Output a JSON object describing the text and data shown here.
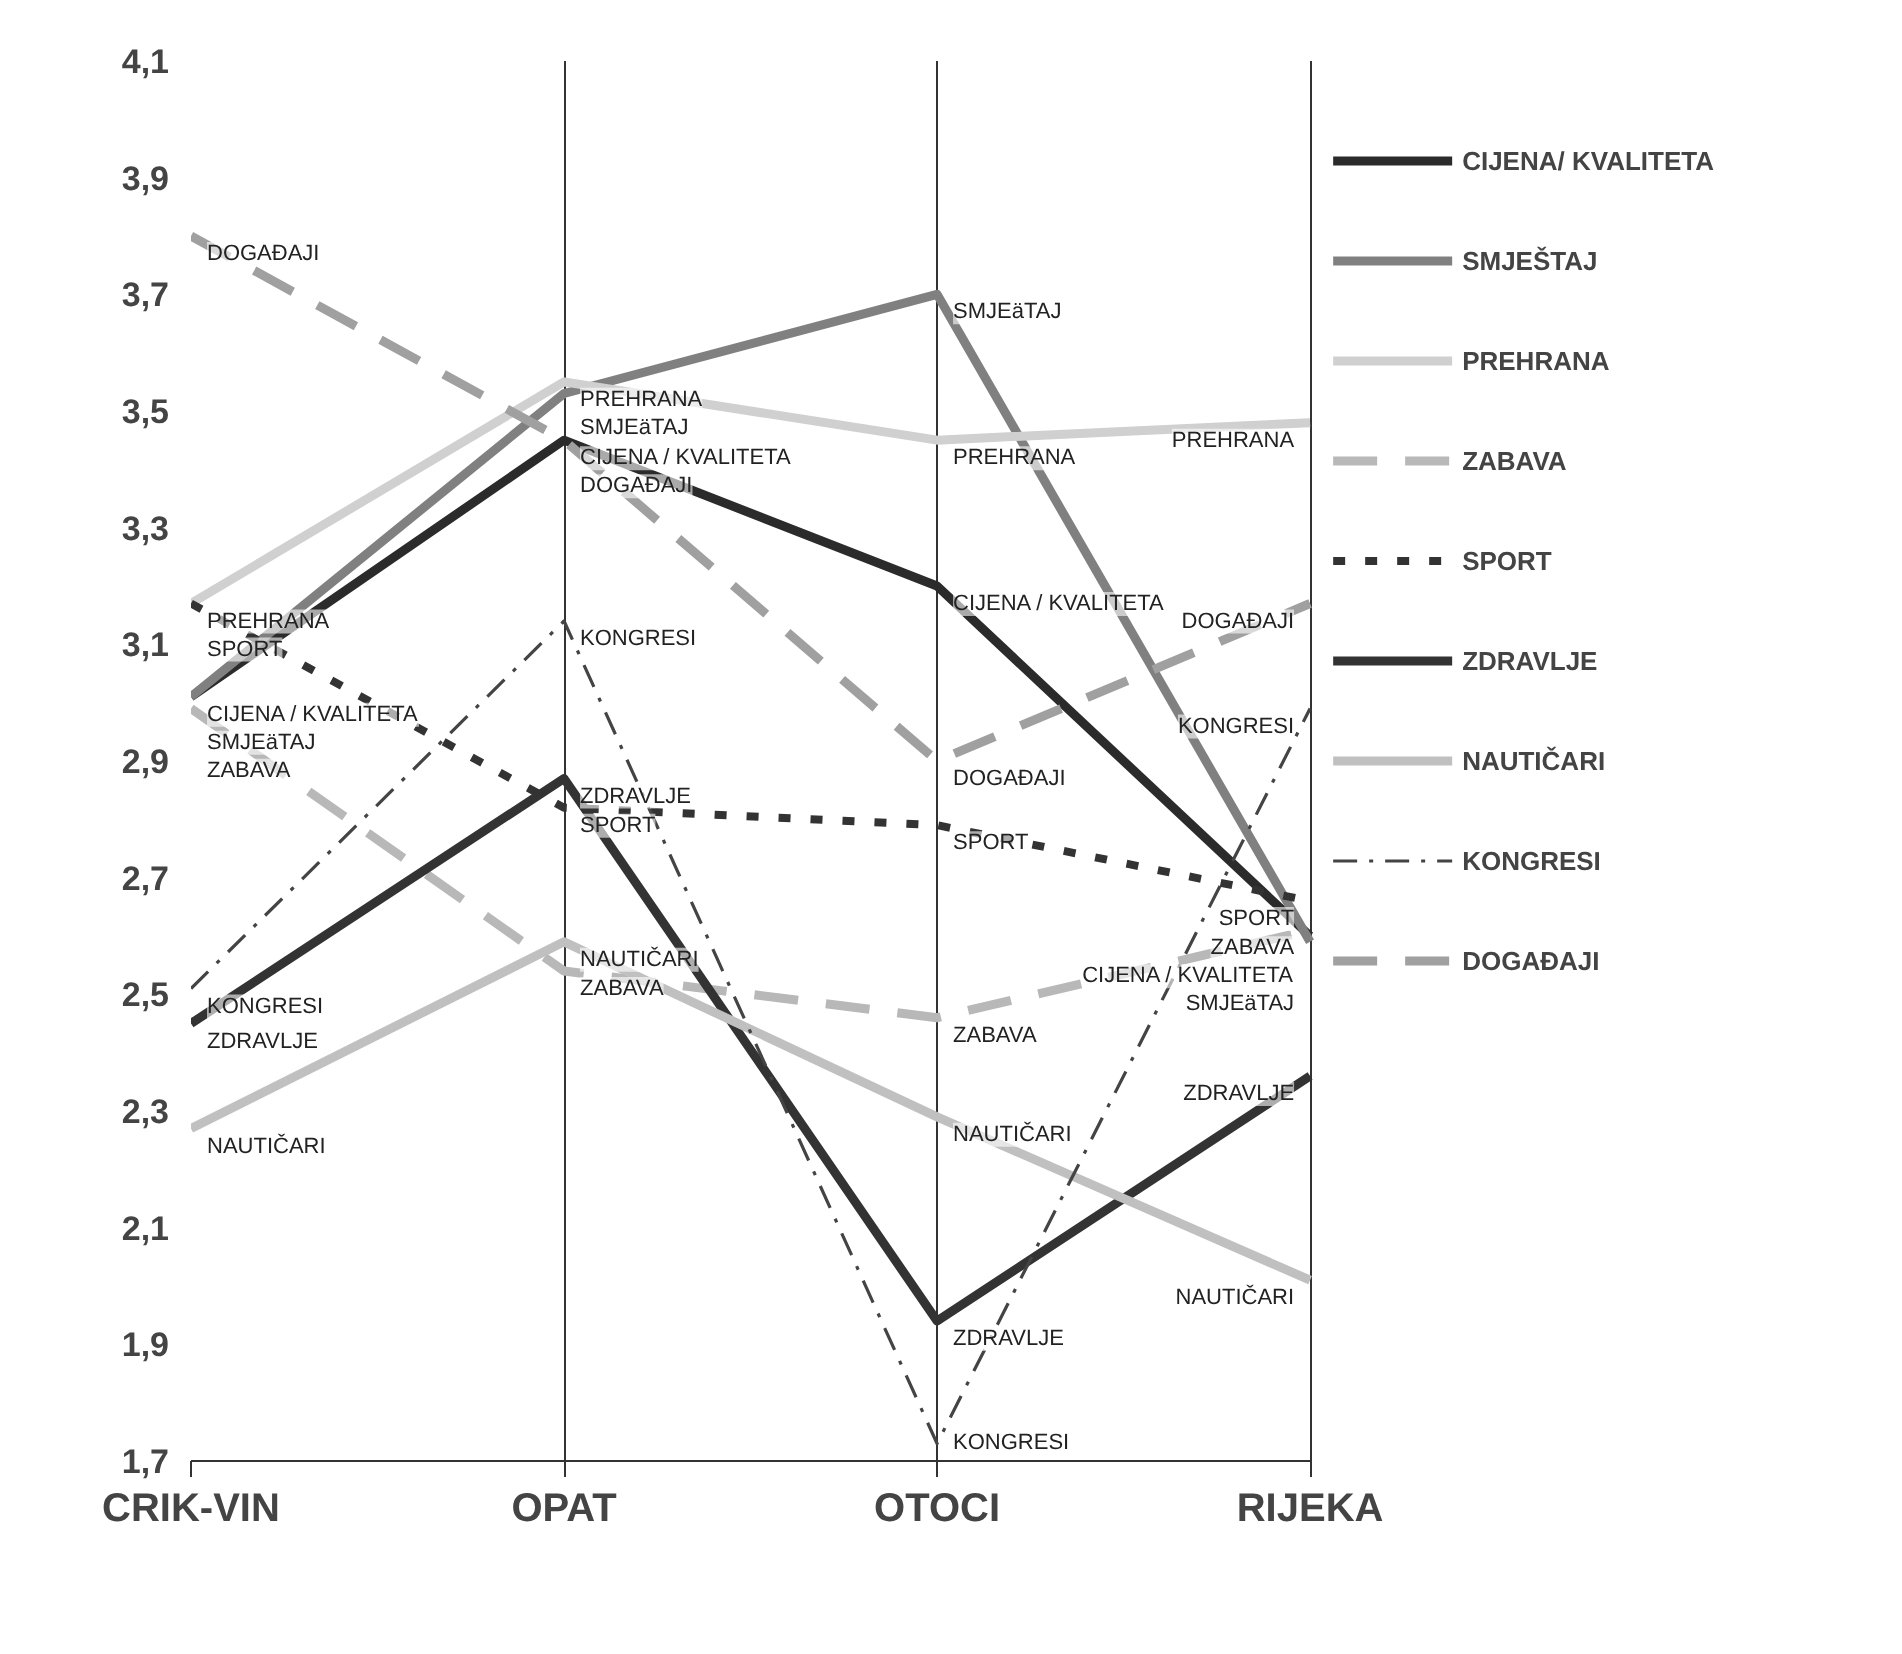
{
  "chart_data": {
    "type": "line",
    "categories": [
      "CRIK-VIN",
      "OPAT",
      "OTOCI",
      "RIJEKA"
    ],
    "ylim": [
      1.7,
      4.1
    ],
    "yticks": [
      {
        "value": 1.7,
        "label": "1,7"
      },
      {
        "value": 1.9,
        "label": "1,9"
      },
      {
        "value": 2.1,
        "label": "2,1"
      },
      {
        "value": 2.3,
        "label": "2,3"
      },
      {
        "value": 2.5,
        "label": "2,5"
      },
      {
        "value": 2.7,
        "label": "2,7"
      },
      {
        "value": 2.9,
        "label": "2,9"
      },
      {
        "value": 3.1,
        "label": "3,1"
      },
      {
        "value": 3.3,
        "label": "3,3"
      },
      {
        "value": 3.5,
        "label": "3,5"
      },
      {
        "value": 3.7,
        "label": "3,7"
      },
      {
        "value": 3.9,
        "label": "3,9"
      },
      {
        "value": 4.1,
        "label": "4,1"
      }
    ],
    "grid": "x",
    "legend": "right",
    "series": [
      {
        "name": "CIJENA/ KVALITETA",
        "color": "#2b2b2b",
        "line_style": "solid",
        "values": [
          3.01,
          3.45,
          3.2,
          2.6
        ],
        "value_labels": [
          "CIJENA / KVALITETA",
          "CIJENA / KVALITETA",
          "CIJENA / KVALITETA",
          "CIJENA / KVALITETA"
        ]
      },
      {
        "name": "SMJEŠTAJ",
        "color": "#808080",
        "line_style": "solid",
        "values": [
          3.01,
          3.53,
          3.7,
          2.59
        ],
        "value_labels": [
          "SMJEäTAJ",
          "SMJEäTAJ",
          "SMJEäTAJ",
          "SMJEäTAJ"
        ]
      },
      {
        "name": "PREHRANA",
        "color": "#d0d0d0",
        "line_style": "solid",
        "values": [
          3.17,
          3.55,
          3.45,
          3.48
        ],
        "value_labels": [
          "PREHRANA",
          "PREHRANA",
          "PREHRANA",
          "PREHRANA"
        ]
      },
      {
        "name": "ZABAVA",
        "color": "#b8b8b8",
        "line_style": "dashed",
        "values": [
          2.99,
          2.54,
          2.46,
          2.61
        ],
        "value_labels": [
          "ZABAVA",
          "ZABAVA",
          "ZABAVA",
          "ZABAVA"
        ]
      },
      {
        "name": "SPORT",
        "color": "#333333",
        "line_style": "dotted",
        "values": [
          3.17,
          2.82,
          2.79,
          2.66
        ],
        "value_labels": [
          "SPORT",
          "SPORT",
          "SPORT",
          "SPORT"
        ]
      },
      {
        "name": "ZDRAVLJE",
        "color": "#333333",
        "line_style": "solid",
        "values": [
          2.45,
          2.87,
          1.94,
          2.36
        ],
        "value_labels": [
          "ZDRAVLJE",
          "ZDRAVLJE",
          "ZDRAVLJE",
          "ZDRAVLJE"
        ]
      },
      {
        "name": "NAUTIČARI",
        "color": "#c0c0c0",
        "line_style": "solid",
        "values": [
          2.27,
          2.59,
          2.29,
          2.01
        ],
        "value_labels": [
          "NAUTIČARI",
          "NAUTIČARI",
          "NAUTIČARI",
          "NAUTIČARI"
        ]
      },
      {
        "name": "KONGRESI",
        "color": "#444444",
        "line_style": "dashdot",
        "values": [
          2.51,
          3.14,
          1.73,
          2.99
        ],
        "value_labels": [
          "KONGRESI",
          "KONGRESI",
          "KONGRESI",
          "KONGRESI"
        ]
      },
      {
        "name": "DOGAĐAJI",
        "color": "#a0a0a0",
        "line_style": "dashed",
        "values": [
          3.8,
          3.45,
          2.9,
          3.17
        ],
        "value_labels": [
          "DOGAĐAJI",
          "DOGAĐAJI",
          "DOGAĐAJI",
          "DOGAĐAJI"
        ]
      }
    ]
  }
}
